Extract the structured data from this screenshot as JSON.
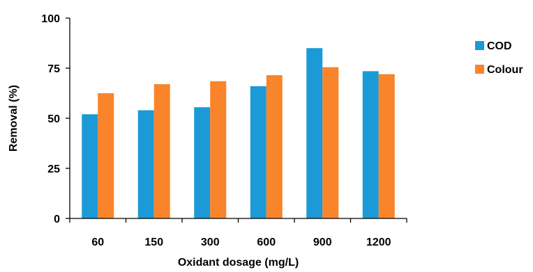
{
  "chart_data": {
    "type": "bar",
    "categories": [
      "60",
      "150",
      "300",
      "600",
      "900",
      "1200"
    ],
    "series": [
      {
        "name": "COD",
        "color": "#1B9AD7",
        "values": [
          52,
          54,
          55.5,
          66,
          85,
          73.5
        ]
      },
      {
        "name": "Colour",
        "color": "#F9842A",
        "values": [
          62.5,
          67,
          68.5,
          71.5,
          75.5,
          72
        ]
      }
    ],
    "title": "",
    "xlabel": "Oxidant dosage (mg/L)",
    "ylabel": "Removal (%)",
    "ylim": [
      0,
      100
    ],
    "yticks": [
      0,
      25,
      50,
      75,
      100
    ],
    "grid": false,
    "legend_position": "right"
  }
}
